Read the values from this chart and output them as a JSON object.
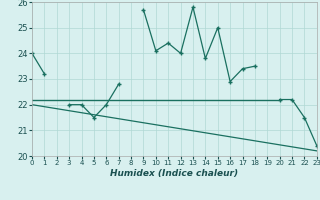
{
  "xlabel": "Humidex (Indice chaleur)",
  "x": [
    0,
    1,
    2,
    3,
    4,
    5,
    6,
    7,
    8,
    9,
    10,
    11,
    12,
    13,
    14,
    15,
    16,
    17,
    18,
    19,
    20,
    21,
    22,
    23
  ],
  "line1": [
    24.0,
    23.2,
    null,
    22.0,
    22.0,
    21.5,
    22.0,
    22.8,
    null,
    25.7,
    24.1,
    24.4,
    24.0,
    25.8,
    23.8,
    25.0,
    22.9,
    23.4,
    23.5,
    null,
    22.2,
    22.2,
    21.5,
    20.4
  ],
  "line2_x": [
    0,
    20
  ],
  "line2_y": [
    22.2,
    22.2
  ],
  "line3_x": [
    0,
    23
  ],
  "line3_y": [
    22.0,
    20.2
  ],
  "ylim": [
    20,
    26
  ],
  "xlim": [
    0,
    23
  ],
  "yticks": [
    20,
    21,
    22,
    23,
    24,
    25,
    26
  ],
  "xticks": [
    0,
    1,
    2,
    3,
    4,
    5,
    6,
    7,
    8,
    9,
    10,
    11,
    12,
    13,
    14,
    15,
    16,
    17,
    18,
    19,
    20,
    21,
    22,
    23
  ],
  "line_color": "#1a7060",
  "bg_color": "#d8f0ef",
  "grid_color": "#b0d8d4",
  "fig_bg": "#d8f0ef"
}
